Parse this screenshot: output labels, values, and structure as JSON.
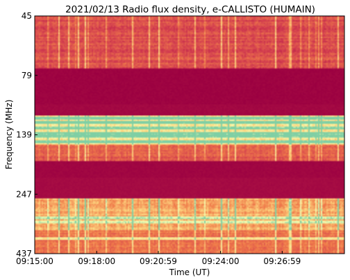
{
  "chart_data": {
    "type": "heatmap",
    "title": "2021/02/13  Radio flux density, e-CALLISTO (HUMAIN)",
    "xlabel": "Time (UT)",
    "ylabel": "Frequency (MHz)",
    "x_ticks": [
      "09:15:00",
      "09:18:00",
      "09:20:59",
      "09:24:00",
      "09:26:59"
    ],
    "y_ticks": [
      "45",
      "79",
      "139",
      "247",
      "437"
    ],
    "x_range": [
      "09:15:00",
      "09:30:00"
    ],
    "y_range": [
      45,
      437
    ],
    "y_inverted": true,
    "colormap": "Spectral_r",
    "colors": {
      "background_low": "#9b0041",
      "mid": "#d23c4f",
      "warm": "#f07c4a",
      "hot": "#fdd680",
      "peak": "#f4fbb0",
      "max": "#7fcfa4"
    },
    "bands": [
      {
        "top": 0.0,
        "bottom": 0.22,
        "level": 0.22,
        "note": "low-frequency noise region"
      },
      {
        "top": 0.22,
        "bottom": 0.32,
        "level": 0.0,
        "note": "quiet band"
      },
      {
        "top": 0.37,
        "bottom": 0.41,
        "level": 0.02
      },
      {
        "top": 0.415,
        "bottom": 0.535,
        "level": 0.62
      },
      {
        "top": 0.535,
        "bottom": 0.61,
        "level": 0.28
      },
      {
        "top": 0.61,
        "bottom": 0.68,
        "level": 0.01
      },
      {
        "top": 0.68,
        "bottom": 0.765,
        "level": 0.03
      },
      {
        "top": 0.765,
        "bottom": 0.9,
        "level": 0.45
      },
      {
        "top": 0.9,
        "bottom": 1.0,
        "level": 0.3
      }
    ],
    "bright_lines": [
      0.425,
      0.445,
      0.47,
      0.49,
      0.505,
      0.525,
      0.845,
      0.865,
      0.935
    ]
  }
}
